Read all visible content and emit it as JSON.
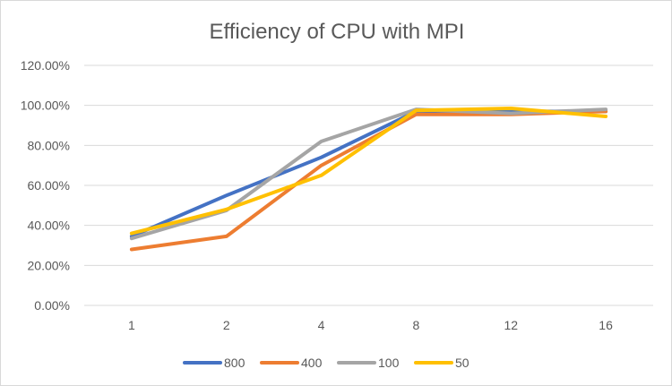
{
  "chart_data": {
    "type": "line",
    "title": "Efficiency of CPU with MPI",
    "xlabel": "",
    "ylabel": "",
    "categories": [
      "1",
      "2",
      "4",
      "8",
      "12",
      "16"
    ],
    "ylim": [
      0,
      120
    ],
    "y_ticks": [
      "0.00%",
      "20.00%",
      "40.00%",
      "60.00%",
      "80.00%",
      "100.00%",
      "120.00%"
    ],
    "grid": true,
    "legend_position": "bottom",
    "series": [
      {
        "name": "800",
        "color": "#4472C4",
        "values": [
          34.5,
          55,
          74,
          97,
          97,
          97
        ]
      },
      {
        "name": "400",
        "color": "#ED7D31",
        "values": [
          28,
          34.5,
          70,
          95.5,
          95.5,
          97
        ]
      },
      {
        "name": "100",
        "color": "#A5A5A5",
        "values": [
          33.5,
          47.5,
          82,
          98,
          96,
          98
        ]
      },
      {
        "name": "50",
        "color": "#FFC000",
        "values": [
          36,
          48,
          65,
          97.5,
          98.5,
          94.5
        ]
      }
    ]
  }
}
